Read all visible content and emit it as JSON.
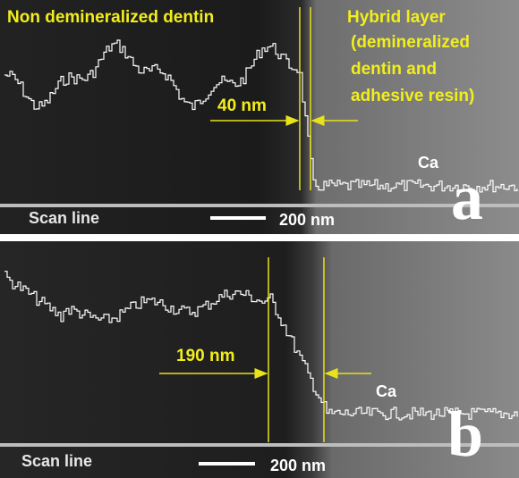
{
  "panels": [
    {
      "label": "a",
      "region_left": "Non demineralized dentin",
      "region_right": [
        "Hybrid layer",
        "(demineralized",
        "dentin and",
        "adhesive resin)"
      ],
      "width_label": "40 nm",
      "element": "Ca",
      "scan_line": "Scan line",
      "scale_bar": "200 nm"
    },
    {
      "label": "b",
      "width_label": "190 nm",
      "element": "Ca",
      "scan_line": "Scan line",
      "scale_bar": "200 nm"
    }
  ]
}
